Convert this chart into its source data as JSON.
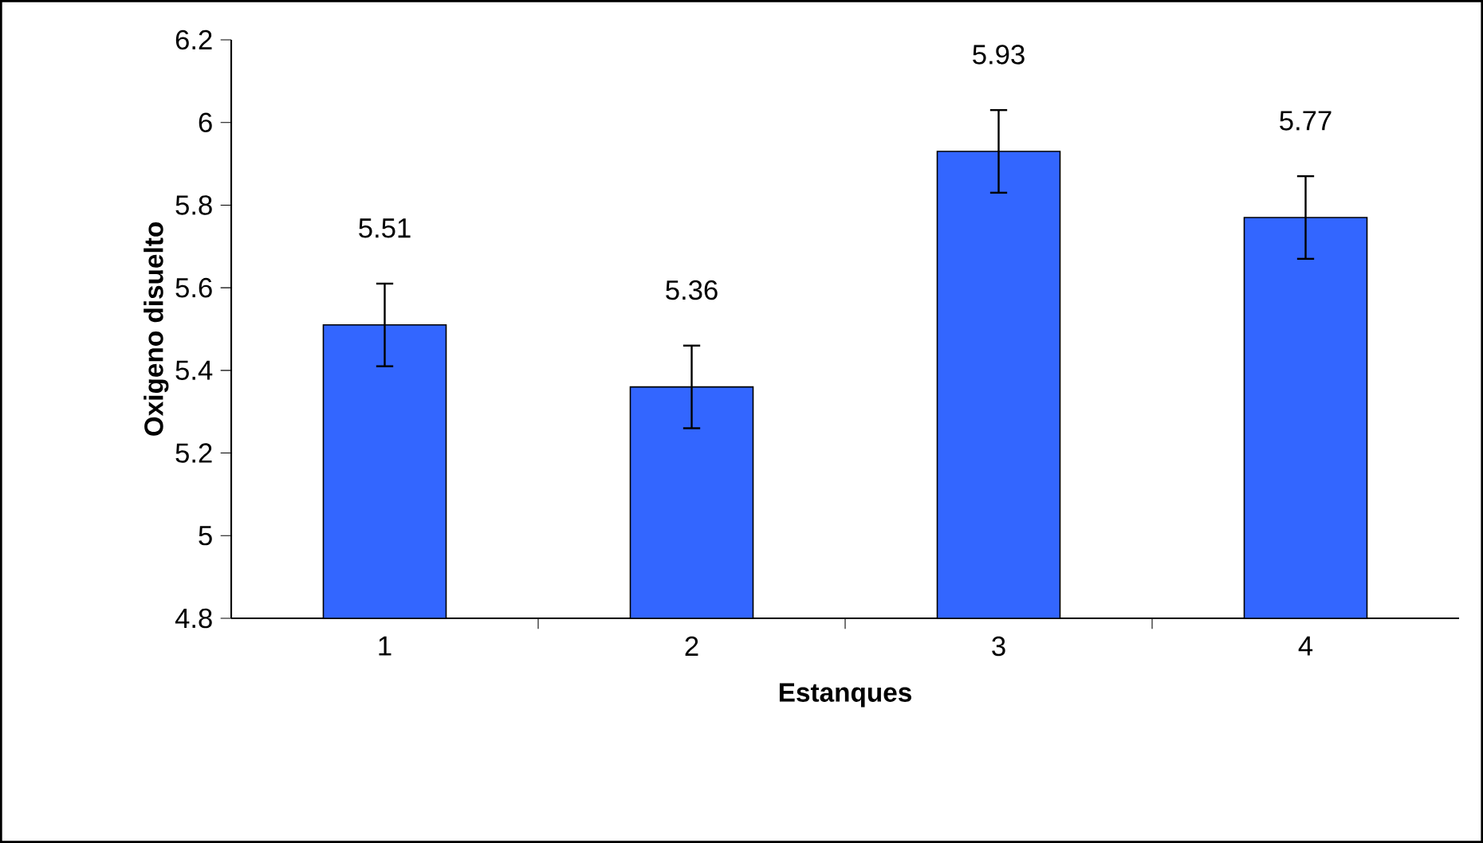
{
  "chart_data": {
    "type": "bar",
    "xlabel": "Estanques",
    "ylabel": "Oxigeno disuelto",
    "categories": [
      "1",
      "2",
      "3",
      "4"
    ],
    "values": [
      5.51,
      5.36,
      5.93,
      5.77
    ],
    "errors": [
      0.1,
      0.1,
      0.1,
      0.1
    ],
    "value_labels": [
      "5.51",
      "5.36",
      "5.93",
      "5.77"
    ],
    "color": "#3366ff",
    "ylim": [
      4.8,
      6.2
    ],
    "yticks": [
      4.8,
      5,
      5.2,
      5.4,
      5.6,
      5.8,
      6,
      6.2
    ],
    "data_labels": true
  }
}
